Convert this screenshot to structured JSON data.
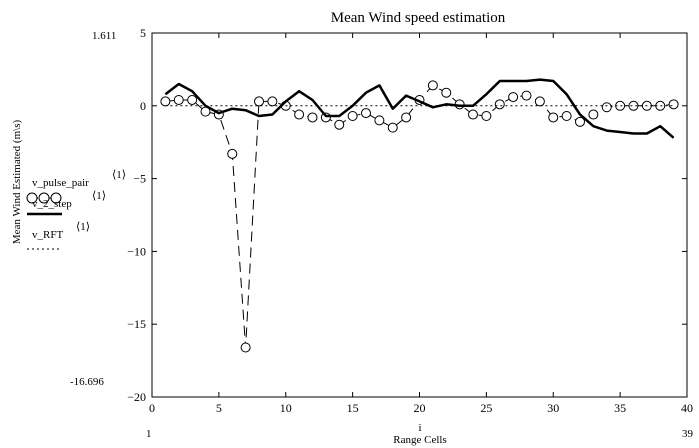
{
  "chart_data": {
    "type": "line",
    "title": "Mean Wind speed estimation",
    "xlabel": "Range Cells",
    "xlabel_var": "i",
    "ylabel": "Mean Wind Estimated (m\\s)",
    "xlim": [
      0,
      40
    ],
    "ylim": [
      -20,
      5
    ],
    "xticks": [
      0,
      5,
      10,
      15,
      20,
      25,
      30,
      35,
      40
    ],
    "yticks": [
      5,
      0,
      -5,
      -10,
      -15,
      -20
    ],
    "range_markers": {
      "y_top": "1.611",
      "y_bottom": "-16.696",
      "x_left": "1",
      "x_right": "39"
    },
    "legend_position": "left",
    "series": [
      {
        "name": "v_pulse_pair",
        "superscript": "⟨1⟩",
        "style": "dashed-circles",
        "color": "#000000",
        "x": [
          1,
          2,
          3,
          4,
          5,
          6,
          7,
          8,
          9,
          10,
          11,
          12,
          13,
          14,
          15,
          16,
          17,
          18,
          19,
          20,
          21,
          22,
          23,
          24,
          25,
          26,
          27,
          28,
          29,
          30,
          31,
          32,
          33,
          34,
          35,
          36,
          37,
          38,
          39
        ],
        "y": [
          0.3,
          0.4,
          0.4,
          -0.4,
          -0.6,
          -3.3,
          -16.6,
          0.3,
          0.3,
          0.0,
          -0.6,
          -0.8,
          -0.8,
          -1.3,
          -0.7,
          -0.5,
          -1.0,
          -1.5,
          -0.8,
          0.4,
          1.4,
          0.9,
          0.1,
          -0.6,
          -0.7,
          0.1,
          0.6,
          0.7,
          0.3,
          -0.8,
          -0.7,
          -1.1,
          -0.6,
          -0.1,
          0.0,
          0.0,
          0.0,
          0.0,
          0.1
        ]
      },
      {
        "name": "v_2_step",
        "superscript": "⟨1⟩",
        "style": "thick-solid",
        "color": "#000000",
        "x": [
          1,
          2,
          3,
          4,
          5,
          6,
          7,
          8,
          9,
          10,
          11,
          12,
          13,
          14,
          15,
          16,
          17,
          18,
          19,
          20,
          21,
          22,
          23,
          24,
          25,
          26,
          27,
          28,
          29,
          30,
          31,
          32,
          33,
          34,
          35,
          36,
          37,
          38,
          39
        ],
        "y": [
          0.8,
          1.5,
          1.0,
          0.0,
          -0.5,
          -0.2,
          -0.3,
          -0.7,
          -0.6,
          0.3,
          1.0,
          0.4,
          -0.7,
          -0.7,
          0.0,
          0.9,
          1.4,
          -0.2,
          0.7,
          0.3,
          -0.1,
          0.1,
          0.0,
          0.0,
          0.8,
          1.7,
          1.7,
          1.7,
          1.8,
          1.7,
          0.8,
          -0.6,
          -1.4,
          -1.7,
          -1.8,
          -1.9,
          -1.9,
          -1.4,
          -2.2
        ]
      },
      {
        "name": "v_RFT",
        "superscript": "⟨1⟩",
        "style": "dotted",
        "color": "#000000",
        "x": [
          1,
          39
        ],
        "y": [
          0.0,
          0.0
        ]
      }
    ]
  }
}
